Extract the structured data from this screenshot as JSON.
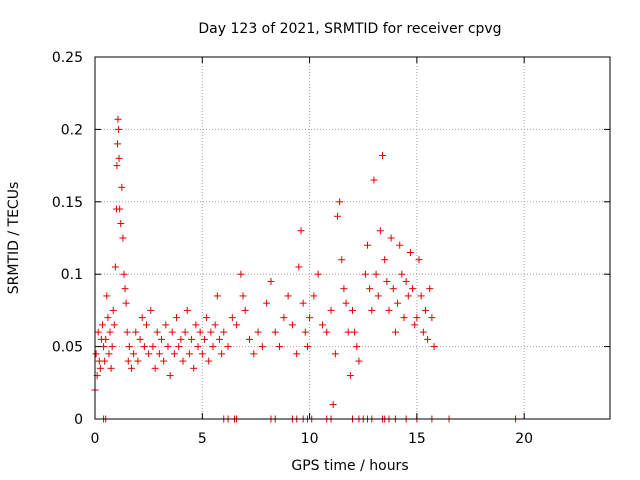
{
  "chart_data": {
    "type": "scatter",
    "title": "Day 123 of 2021, SRMTID for receiver cpvg",
    "xlabel": "GPS time / hours",
    "ylabel": "SRMTID / TECUs",
    "xlim": [
      0,
      24
    ],
    "ylim": [
      0,
      0.25
    ],
    "xticks": [
      0,
      5,
      10,
      15,
      20
    ],
    "xtick_labels": [
      "0",
      "5",
      "10",
      "15",
      "20"
    ],
    "yticks": [
      0,
      0.05,
      0.1,
      0.15,
      0.2,
      0.25
    ],
    "ytick_labels": [
      "0",
      "0.05",
      "0.1",
      "0.15",
      "0.2",
      "0.25"
    ],
    "grid": true,
    "marker": "+",
    "color": "#e00000",
    "series": [
      {
        "name": "SRMTID",
        "points": [
          [
            0.0,
            0.02
          ],
          [
            0.05,
            0.045
          ],
          [
            0.1,
            0.03
          ],
          [
            0.15,
            0.06
          ],
          [
            0.2,
            0.04
          ],
          [
            0.25,
            0.035
          ],
          [
            0.3,
            0.055
          ],
          [
            0.35,
            0.065
          ],
          [
            0.4,
            0.05
          ],
          [
            0.45,
            0.04
          ],
          [
            0.5,
            0.055
          ],
          [
            0.55,
            0.085
          ],
          [
            0.6,
            0.07
          ],
          [
            0.65,
            0.045
          ],
          [
            0.7,
            0.06
          ],
          [
            0.75,
            0.035
          ],
          [
            0.8,
            0.05
          ],
          [
            0.85,
            0.075
          ],
          [
            0.9,
            0.065
          ],
          [
            0.95,
            0.105
          ],
          [
            1.0,
            0.145
          ],
          [
            1.02,
            0.175
          ],
          [
            1.05,
            0.19
          ],
          [
            1.07,
            0.207
          ],
          [
            1.1,
            0.2
          ],
          [
            1.12,
            0.18
          ],
          [
            1.15,
            0.145
          ],
          [
            1.2,
            0.135
          ],
          [
            1.25,
            0.16
          ],
          [
            1.3,
            0.125
          ],
          [
            1.35,
            0.1
          ],
          [
            1.4,
            0.09
          ],
          [
            1.45,
            0.08
          ],
          [
            1.5,
            0.06
          ],
          [
            1.55,
            0.04
          ],
          [
            1.6,
            0.05
          ],
          [
            1.7,
            0.035
          ],
          [
            1.8,
            0.045
          ],
          [
            1.9,
            0.06
          ],
          [
            2.0,
            0.04
          ],
          [
            2.1,
            0.055
          ],
          [
            2.2,
            0.07
          ],
          [
            2.3,
            0.05
          ],
          [
            2.4,
            0.065
          ],
          [
            2.5,
            0.045
          ],
          [
            2.6,
            0.075
          ],
          [
            2.7,
            0.05
          ],
          [
            2.8,
            0.035
          ],
          [
            2.9,
            0.06
          ],
          [
            3.0,
            0.045
          ],
          [
            3.1,
            0.055
          ],
          [
            3.2,
            0.04
          ],
          [
            3.3,
            0.065
          ],
          [
            3.4,
            0.05
          ],
          [
            3.5,
            0.03
          ],
          [
            3.6,
            0.06
          ],
          [
            3.7,
            0.045
          ],
          [
            3.8,
            0.07
          ],
          [
            3.9,
            0.05
          ],
          [
            4.0,
            0.055
          ],
          [
            4.1,
            0.04
          ],
          [
            4.2,
            0.06
          ],
          [
            4.3,
            0.075
          ],
          [
            4.4,
            0.045
          ],
          [
            4.5,
            0.055
          ],
          [
            4.6,
            0.035
          ],
          [
            4.7,
            0.065
          ],
          [
            4.8,
            0.05
          ],
          [
            4.9,
            0.06
          ],
          [
            5.0,
            0.045
          ],
          [
            5.1,
            0.055
          ],
          [
            5.2,
            0.07
          ],
          [
            5.3,
            0.04
          ],
          [
            5.4,
            0.06
          ],
          [
            5.5,
            0.05
          ],
          [
            5.6,
            0.065
          ],
          [
            5.7,
            0.085
          ],
          [
            5.8,
            0.055
          ],
          [
            5.9,
            0.045
          ],
          [
            6.0,
            0.06
          ],
          [
            6.2,
            0.05
          ],
          [
            6.4,
            0.07
          ],
          [
            6.6,
            0.065
          ],
          [
            6.8,
            0.1
          ],
          [
            6.9,
            0.085
          ],
          [
            7.0,
            0.075
          ],
          [
            7.2,
            0.055
          ],
          [
            7.4,
            0.045
          ],
          [
            7.6,
            0.06
          ],
          [
            7.8,
            0.05
          ],
          [
            8.0,
            0.08
          ],
          [
            8.2,
            0.095
          ],
          [
            8.4,
            0.06
          ],
          [
            8.6,
            0.05
          ],
          [
            8.8,
            0.07
          ],
          [
            9.0,
            0.085
          ],
          [
            9.2,
            0.065
          ],
          [
            9.4,
            0.045
          ],
          [
            9.5,
            0.105
          ],
          [
            9.6,
            0.13
          ],
          [
            9.7,
            0.08
          ],
          [
            9.8,
            0.06
          ],
          [
            9.9,
            0.05
          ],
          [
            10.0,
            0.07
          ],
          [
            10.2,
            0.085
          ],
          [
            10.4,
            0.1
          ],
          [
            10.6,
            0.065
          ],
          [
            10.8,
            0.06
          ],
          [
            11.0,
            0.075
          ],
          [
            11.1,
            0.01
          ],
          [
            11.2,
            0.045
          ],
          [
            11.3,
            0.14
          ],
          [
            11.4,
            0.15
          ],
          [
            11.5,
            0.11
          ],
          [
            11.6,
            0.09
          ],
          [
            11.7,
            0.08
          ],
          [
            11.8,
            0.06
          ],
          [
            11.9,
            0.03
          ],
          [
            12.0,
            0.075
          ],
          [
            12.1,
            0.06
          ],
          [
            12.2,
            0.05
          ],
          [
            12.3,
            0.04
          ],
          [
            12.6,
            0.1
          ],
          [
            12.7,
            0.12
          ],
          [
            12.8,
            0.09
          ],
          [
            12.9,
            0.075
          ],
          [
            13.0,
            0.165
          ],
          [
            13.1,
            0.1
          ],
          [
            13.2,
            0.085
          ],
          [
            13.3,
            0.13
          ],
          [
            13.4,
            0.182
          ],
          [
            13.5,
            0.11
          ],
          [
            13.6,
            0.095
          ],
          [
            13.7,
            0.075
          ],
          [
            13.8,
            0.125
          ],
          [
            13.9,
            0.09
          ],
          [
            14.0,
            0.06
          ],
          [
            14.1,
            0.08
          ],
          [
            14.2,
            0.12
          ],
          [
            14.3,
            0.1
          ],
          [
            14.4,
            0.07
          ],
          [
            14.5,
            0.095
          ],
          [
            14.6,
            0.085
          ],
          [
            14.7,
            0.115
          ],
          [
            14.8,
            0.09
          ],
          [
            14.9,
            0.065
          ],
          [
            15.0,
            0.07
          ],
          [
            15.1,
            0.11
          ],
          [
            15.2,
            0.085
          ],
          [
            15.3,
            0.06
          ],
          [
            15.4,
            0.075
          ],
          [
            15.5,
            0.055
          ],
          [
            15.6,
            0.09
          ],
          [
            15.7,
            0.07
          ],
          [
            15.8,
            0.05
          ]
        ],
        "zero_x": [
          0.4,
          0.5,
          6.0,
          6.2,
          6.5,
          6.6,
          8.2,
          8.4,
          9.2,
          9.4,
          9.7,
          9.9,
          10.1,
          10.8,
          11.0,
          12.0,
          12.3,
          12.5,
          12.7,
          12.9,
          13.4,
          13.5,
          13.7,
          14.0,
          14.5,
          15.0,
          15.7,
          16.5,
          19.6
        ]
      }
    ]
  }
}
